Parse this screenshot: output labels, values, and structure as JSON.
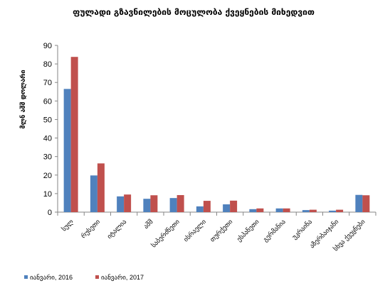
{
  "chart_data": {
    "type": "bar",
    "title": "ფულადი გზავნილების მოცულობა ქვეყნების მიხედვით",
    "ylabel": "მლნ აშშ დოლარი",
    "xlabel": "",
    "ylim": [
      0,
      90
    ],
    "yticks": [
      0,
      10,
      20,
      30,
      40,
      50,
      60,
      70,
      80,
      90
    ],
    "grid": false,
    "legend_position": "bottom",
    "categories": [
      "სულ",
      "რუსეთი",
      "იტალია",
      "აშშ",
      "საბერძნეთი",
      "ისრაელი",
      "თურქეთი",
      "ესპანეთი",
      "გერმანია",
      "უკრაინა",
      "აზერბაიჯანი",
      "სხვა ქვეყნები"
    ],
    "series": [
      {
        "name": "იანვარი, 2016",
        "color": "#4F81BD",
        "values": [
          66.5,
          19.8,
          8.5,
          7.2,
          7.6,
          3.1,
          4.2,
          1.6,
          2.0,
          1.1,
          0.8,
          9.3
        ]
      },
      {
        "name": "იანვარი, 2017",
        "color": "#C0504D",
        "values": [
          83.8,
          26.3,
          9.5,
          9.1,
          9.2,
          6.1,
          6.2,
          2.0,
          2.0,
          1.3,
          1.3,
          9.1
        ]
      }
    ]
  }
}
